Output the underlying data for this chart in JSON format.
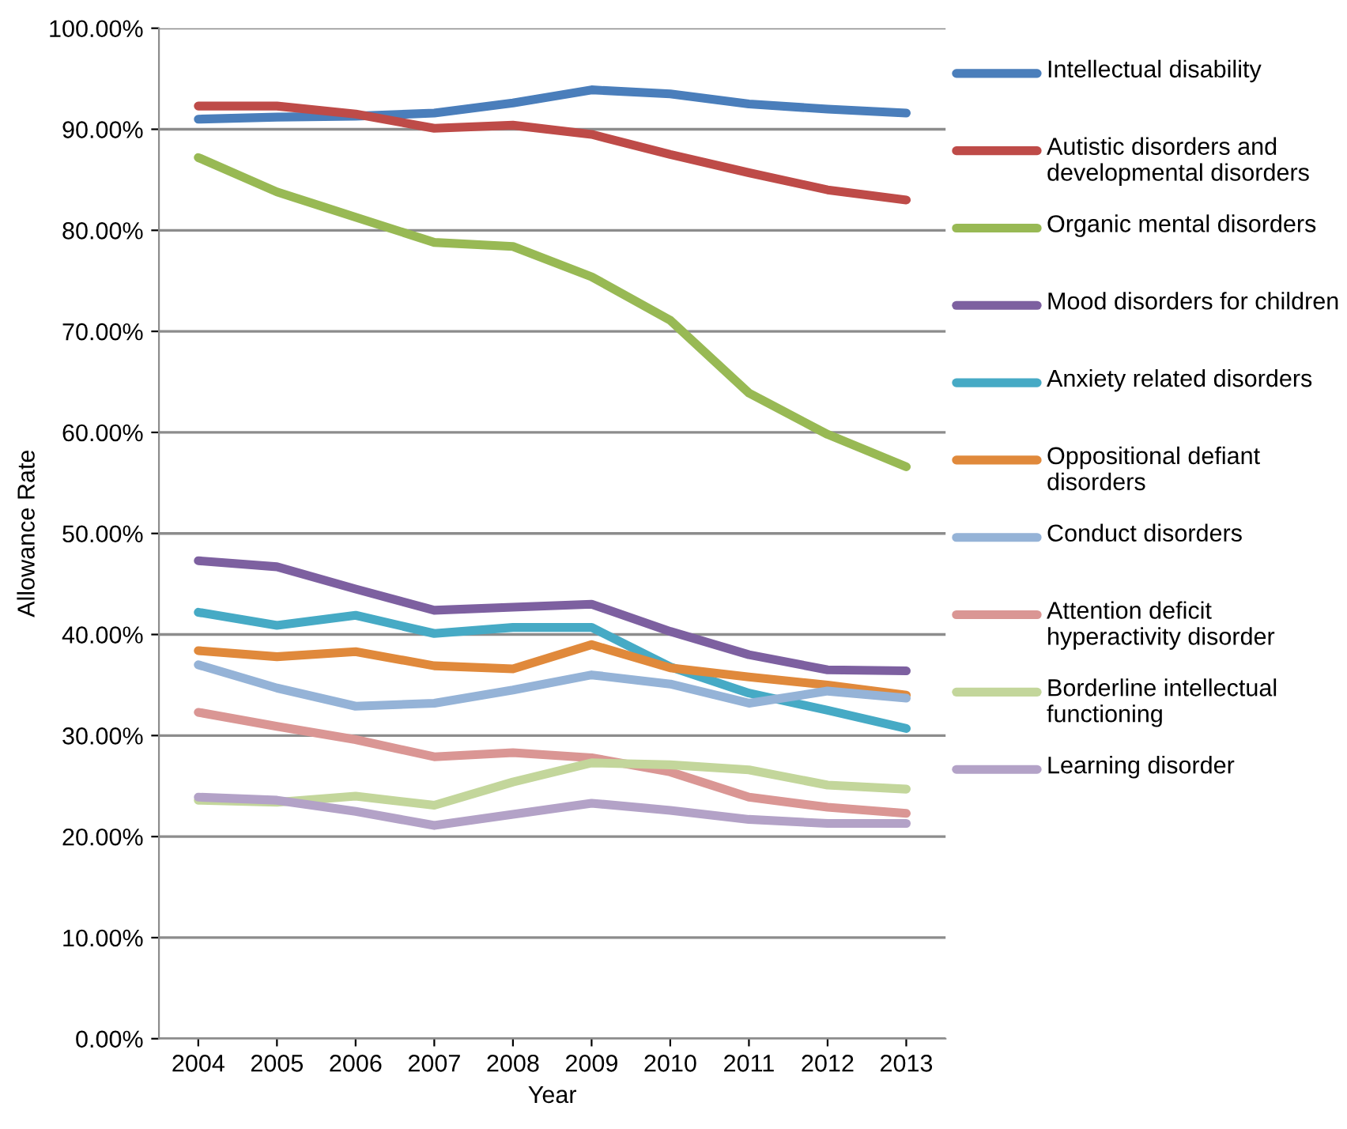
{
  "chart_data": {
    "type": "line",
    "xlabel": "Year",
    "ylabel": "Allowance Rate",
    "categories": [
      "2004",
      "2005",
      "2006",
      "2007",
      "2008",
      "2009",
      "2010",
      "2011",
      "2012",
      "2013"
    ],
    "ylim": [
      0,
      100
    ],
    "yticks": [
      {
        "value": 0,
        "label": "0.00%"
      },
      {
        "value": 10,
        "label": "10.00%"
      },
      {
        "value": 20,
        "label": "20.00%"
      },
      {
        "value": 30,
        "label": "30.00%"
      },
      {
        "value": 40,
        "label": "40.00%"
      },
      {
        "value": 50,
        "label": "50.00%"
      },
      {
        "value": 60,
        "label": "60.00%"
      },
      {
        "value": 70,
        "label": "70.00%"
      },
      {
        "value": 80,
        "label": "80.00%"
      },
      {
        "value": 90,
        "label": "90.00%"
      },
      {
        "value": 100,
        "label": "100.00%"
      }
    ],
    "grid": "y",
    "legend": "right",
    "marker": "none",
    "line_style": "solid",
    "series": [
      {
        "name": "Intellectual disability",
        "color": "#4a7ebb",
        "values": [
          91.0,
          91.2,
          91.3,
          91.6,
          92.6,
          93.9,
          93.5,
          92.5,
          92.0,
          91.6
        ]
      },
      {
        "name": "Autistic disorders and developmental disorders",
        "color": "#be4b48",
        "values": [
          92.3,
          92.3,
          91.5,
          90.1,
          90.4,
          89.5,
          87.5,
          85.7,
          84.0,
          83.0
        ]
      },
      {
        "name": "Organic mental disorders",
        "color": "#98b954",
        "values": [
          87.2,
          83.8,
          81.3,
          78.8,
          78.4,
          75.4,
          71.1,
          63.9,
          59.8,
          56.6
        ]
      },
      {
        "name": "Mood disorders for children",
        "color": "#7d60a0",
        "values": [
          47.3,
          46.7,
          44.5,
          42.4,
          42.7,
          43.0,
          40.3,
          38.0,
          36.5,
          36.4
        ]
      },
      {
        "name": "Anxiety related disorders",
        "color": "#46aac5",
        "values": [
          42.2,
          40.9,
          41.9,
          40.1,
          40.7,
          40.7,
          36.8,
          34.2,
          32.5,
          30.7
        ]
      },
      {
        "name": "Oppositional defiant disorders",
        "color": "#e0893b",
        "values": [
          38.4,
          37.8,
          38.3,
          36.9,
          36.6,
          39.0,
          36.7,
          35.8,
          35.0,
          34.0
        ]
      },
      {
        "name": "Conduct disorders",
        "color": "#95b3d7",
        "values": [
          37.0,
          34.7,
          32.9,
          33.2,
          34.5,
          36.0,
          35.1,
          33.2,
          34.4,
          33.7
        ]
      },
      {
        "name": "Attention deficit hyperactivity disorder",
        "color": "#da9694",
        "values": [
          32.3,
          30.9,
          29.6,
          27.9,
          28.3,
          27.8,
          26.4,
          23.9,
          22.9,
          22.3
        ]
      },
      {
        "name": "Borderline intellectual functioning",
        "color": "#c3d69b",
        "values": [
          23.6,
          23.4,
          24.0,
          23.1,
          25.4,
          27.3,
          27.1,
          26.6,
          25.1,
          24.7
        ]
      },
      {
        "name": "Learning disorder",
        "color": "#b3a2c7",
        "values": [
          23.9,
          23.6,
          22.5,
          21.1,
          22.2,
          23.3,
          22.6,
          21.7,
          21.3,
          21.3
        ]
      }
    ]
  }
}
